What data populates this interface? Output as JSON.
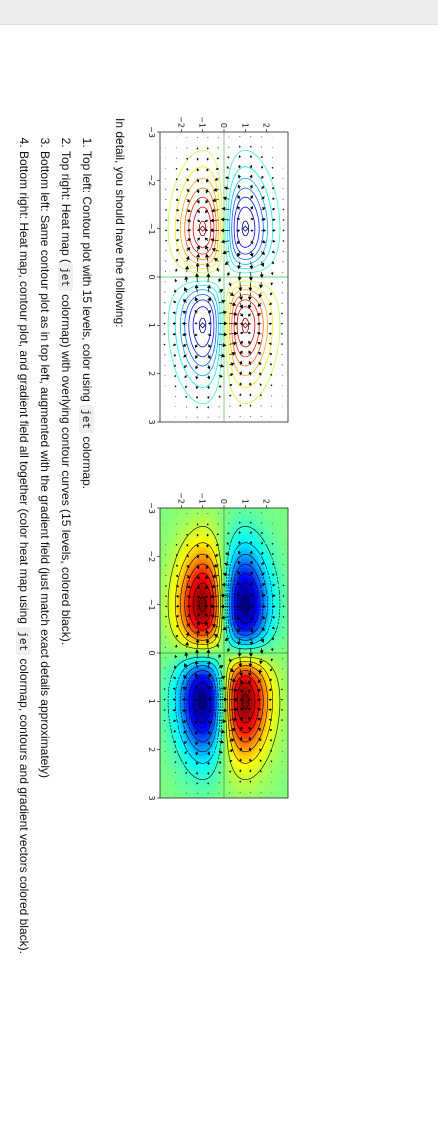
{
  "description": {
    "intro": "In detail, you should have the following:",
    "items": [
      {
        "num": "1.",
        "parts": [
          {
            "t": "Top left: Contour plot with 15 levels, color using "
          },
          {
            "t": "jet",
            "code": true
          },
          {
            "t": " colormap."
          }
        ]
      },
      {
        "num": "2.",
        "parts": [
          {
            "t": "Top right: Heat map ("
          },
          {
            "t": "jet",
            "code": true
          },
          {
            "t": " colormap) with overlying contour curves (15 levels, colored black)."
          }
        ]
      },
      {
        "num": "3.",
        "parts": [
          {
            "t": "Bottom left: Same contour plot as in top left, augmented with the gradient field (just match exact details approximately)"
          }
        ]
      },
      {
        "num": "4.",
        "parts": [
          {
            "t": "Bottom right: Heat map, contour plot, and gradient field all together (color heat map using "
          },
          {
            "t": "jet",
            "code": true
          },
          {
            "t": " colormap, contours and gradient vectors colored black)."
          }
        ]
      }
    ]
  },
  "chart_data": [
    {
      "type": "contour",
      "function": "f(x,y) = x * y * exp(-(x^2 + y^2)/2)",
      "colormap": "jet",
      "levels": 15,
      "contour_color": "colormap",
      "gradient_field": true,
      "reference_lines": {
        "x": 0,
        "y": 0,
        "color": "#6fd46f"
      },
      "xlim": [
        -3,
        3
      ],
      "ylim": [
        -3,
        3
      ],
      "xticks": [
        -3,
        -2,
        -1,
        0,
        1,
        2,
        3
      ],
      "yticks": [
        -2,
        -1,
        0,
        1,
        2
      ],
      "xtick_labels": [
        "−3",
        "−2",
        "−1",
        "0",
        "1",
        "2",
        "3"
      ],
      "ytick_labels": [
        "−2",
        "−1",
        "0",
        "1",
        "2"
      ],
      "extrema": [
        {
          "x": -1,
          "y": 1,
          "value": -0.368,
          "kind": "min"
        },
        {
          "x": 1,
          "y": -1,
          "value": -0.368,
          "kind": "min"
        },
        {
          "x": -1,
          "y": -1,
          "value": 0.368,
          "kind": "max"
        },
        {
          "x": 1,
          "y": 1,
          "value": 0.368,
          "kind": "max"
        }
      ]
    },
    {
      "type": "heatmap",
      "function": "f(x,y) = x * y * exp(-(x^2 + y^2)/2)",
      "colormap": "jet",
      "levels": 15,
      "contour_color": "#000000",
      "gradient_field": true,
      "reference_lines": {
        "x": 0,
        "y": 0,
        "color": "#44aa44"
      },
      "xlim": [
        -3,
        3
      ],
      "ylim": [
        -3,
        3
      ],
      "xticks": [
        -3,
        -2,
        -1,
        0,
        1,
        2,
        3
      ],
      "yticks": [
        -2,
        -1,
        0,
        1,
        2
      ],
      "xtick_labels": [
        "−3",
        "−2",
        "−1",
        "0",
        "1",
        "2",
        "3"
      ],
      "ytick_labels": [
        "−2",
        "−1",
        "0",
        "1",
        "2"
      ],
      "extrema": [
        {
          "x": -1,
          "y": 1,
          "value": -0.368,
          "kind": "min"
        },
        {
          "x": 1,
          "y": -1,
          "value": -0.368,
          "kind": "min"
        },
        {
          "x": -1,
          "y": -1,
          "value": 0.368,
          "kind": "max"
        },
        {
          "x": 1,
          "y": 1,
          "value": 0.368,
          "kind": "max"
        }
      ]
    }
  ]
}
